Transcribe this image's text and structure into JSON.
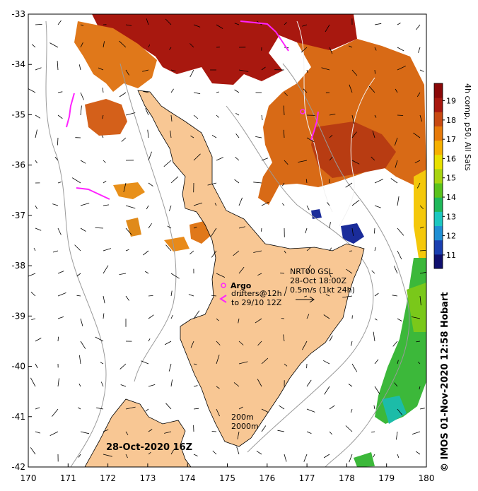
{
  "map": {
    "lon_range": [
      170,
      180
    ],
    "lat_range": [
      -42,
      -33
    ],
    "x_ticks": [
      "170",
      "171",
      "172",
      "173",
      "174",
      "175",
      "176",
      "177",
      "178",
      "179",
      "180"
    ],
    "y_ticks": [
      "-33",
      "-34",
      "-35",
      "-36",
      "-37",
      "-38",
      "-39",
      "-40",
      "-41",
      "-42"
    ],
    "land_color": "#f8c794",
    "frame_color": "#000000"
  },
  "annotations": {
    "argo_label": "Argo",
    "drifters_line1": "drifters@12h",
    "drifters_line2": "to 29/10 12Z",
    "nrt_line1": "NRT00 GSL",
    "nrt_line2": "28-Oct 18:00Z",
    "nrt_line3": "0.5m/s (1kt 24h)",
    "depth_200": "200m",
    "depth_2000": "2000m",
    "date": "28-Oct-2020 16Z",
    "credit": "© IMOS 01-Nov-2020 12:58 Hobart"
  },
  "colorbar": {
    "title": "4h comp, p50, All Sats",
    "ticks": [
      "11",
      "12",
      "13",
      "14",
      "15",
      "16",
      "17",
      "18",
      "19"
    ],
    "range": [
      10.3,
      19.9
    ],
    "colors": [
      "#10106e",
      "#1a3fb0",
      "#1f8fd4",
      "#1cc7c0",
      "#1fb85a",
      "#5ac21c",
      "#a8d410",
      "#e8e000",
      "#f6b000",
      "#e67a0a",
      "#c84a12",
      "#a8180f",
      "#8a0808"
    ]
  },
  "sst_patches": [
    {
      "name": "north-red",
      "color": "#a8180f"
    },
    {
      "name": "northwest-orange",
      "color": "#e0781a"
    },
    {
      "name": "northeast-orange",
      "color": "#d86a16"
    },
    {
      "name": "east-green",
      "color": "#3cb83a"
    },
    {
      "name": "bay-blue",
      "color": "#1a2c9a"
    }
  ]
}
